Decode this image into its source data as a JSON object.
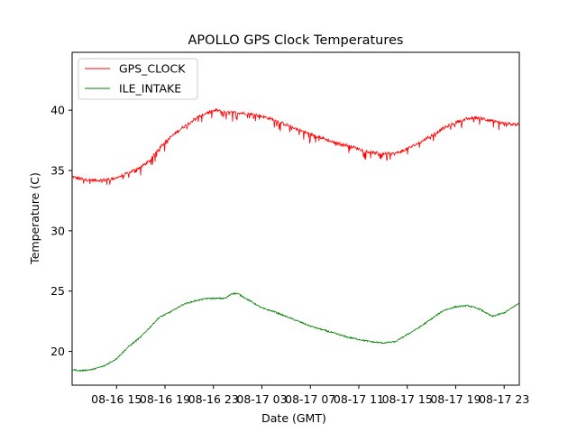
{
  "chart_data": {
    "type": "line",
    "title": "APOLLO GPS Clock Temperatures",
    "xlabel": "Date (GMT)",
    "ylabel": "Temperature (C)",
    "x_unit": "hours",
    "xlim": [
      "08-16 11:20",
      "08-18 00:15"
    ],
    "ylim": [
      17.2,
      44.8
    ],
    "xticks": [
      {
        "at": "08-16 15:00",
        "label": "08-16 15"
      },
      {
        "at": "08-16 19:00",
        "label": "08-16 19"
      },
      {
        "at": "08-16 23:00",
        "label": "08-16 23"
      },
      {
        "at": "08-17 03:00",
        "label": "08-17 03"
      },
      {
        "at": "08-17 07:00",
        "label": "08-17 07"
      },
      {
        "at": "08-17 11:00",
        "label": "08-17 11"
      },
      {
        "at": "08-17 15:00",
        "label": "08-17 15"
      },
      {
        "at": "08-17 19:00",
        "label": "08-17 19"
      },
      {
        "at": "08-17 23:00",
        "label": "08-17 23"
      }
    ],
    "yticks": [
      20,
      25,
      30,
      35,
      40
    ],
    "grid": false,
    "legend_position": "top-left",
    "series": [
      {
        "name": "GPS_CLOCK",
        "color": "#ff0000",
        "x": [
          "08-16 11:20",
          "08-16 12:00",
          "08-16 13:00",
          "08-16 14:00",
          "08-16 15:00",
          "08-16 16:00",
          "08-16 17:00",
          "08-16 17:45",
          "08-16 18:30",
          "08-16 19:30",
          "08-16 20:30",
          "08-16 21:30",
          "08-16 22:30",
          "08-16 23:15",
          "08-17 00:00",
          "08-17 01:00",
          "08-17 02:00",
          "08-17 03:00",
          "08-17 04:00",
          "08-17 05:00",
          "08-17 06:00",
          "08-17 07:00",
          "08-17 08:00",
          "08-17 09:00",
          "08-17 10:00",
          "08-17 11:00",
          "08-17 12:00",
          "08-17 13:00",
          "08-17 14:00",
          "08-17 15:00",
          "08-17 16:00",
          "08-17 17:00",
          "08-17 18:00",
          "08-17 19:00",
          "08-17 20:00",
          "08-17 21:00",
          "08-17 22:00",
          "08-17 23:00",
          "08-18 00:15"
        ],
        "y": [
          34.5,
          34.3,
          34.2,
          34.2,
          34.4,
          34.8,
          35.3,
          35.8,
          36.9,
          37.8,
          38.6,
          39.3,
          39.8,
          40.0,
          39.8,
          39.8,
          39.7,
          39.5,
          39.2,
          38.8,
          38.4,
          38.0,
          37.7,
          37.3,
          37.1,
          36.8,
          36.5,
          36.4,
          36.4,
          36.8,
          37.3,
          37.9,
          38.5,
          39.0,
          39.3,
          39.4,
          39.1,
          38.9,
          38.8
        ]
      },
      {
        "name": "ILE_INTAKE",
        "color": "#008000",
        "x": [
          "08-16 11:20",
          "08-16 12:00",
          "08-16 13:00",
          "08-16 14:00",
          "08-16 15:00",
          "08-16 16:00",
          "08-16 17:00",
          "08-16 17:45",
          "08-16 18:30",
          "08-16 19:30",
          "08-16 20:30",
          "08-16 21:30",
          "08-16 22:30",
          "08-16 23:15",
          "08-17 00:00",
          "08-17 00:30",
          "08-17 01:00",
          "08-17 02:00",
          "08-17 03:00",
          "08-17 04:00",
          "08-17 05:00",
          "08-17 06:00",
          "08-17 07:00",
          "08-17 08:00",
          "08-17 09:00",
          "08-17 10:00",
          "08-17 11:00",
          "08-17 12:00",
          "08-17 13:00",
          "08-17 14:00",
          "08-17 15:00",
          "08-17 16:00",
          "08-17 17:00",
          "08-17 18:00",
          "08-17 19:00",
          "08-17 20:00",
          "08-17 21:00",
          "08-17 22:00",
          "08-17 23:00",
          "08-18 00:15"
        ],
        "y": [
          18.5,
          18.4,
          18.5,
          18.8,
          19.4,
          20.4,
          21.2,
          22.0,
          22.8,
          23.3,
          23.9,
          24.2,
          24.4,
          24.4,
          24.4,
          24.8,
          24.8,
          24.2,
          23.6,
          23.3,
          22.9,
          22.5,
          22.1,
          21.8,
          21.5,
          21.2,
          21.0,
          20.8,
          20.7,
          20.8,
          21.4,
          22.0,
          22.7,
          23.4,
          23.7,
          23.8,
          23.5,
          22.9,
          23.2,
          24.0
        ]
      }
    ]
  }
}
